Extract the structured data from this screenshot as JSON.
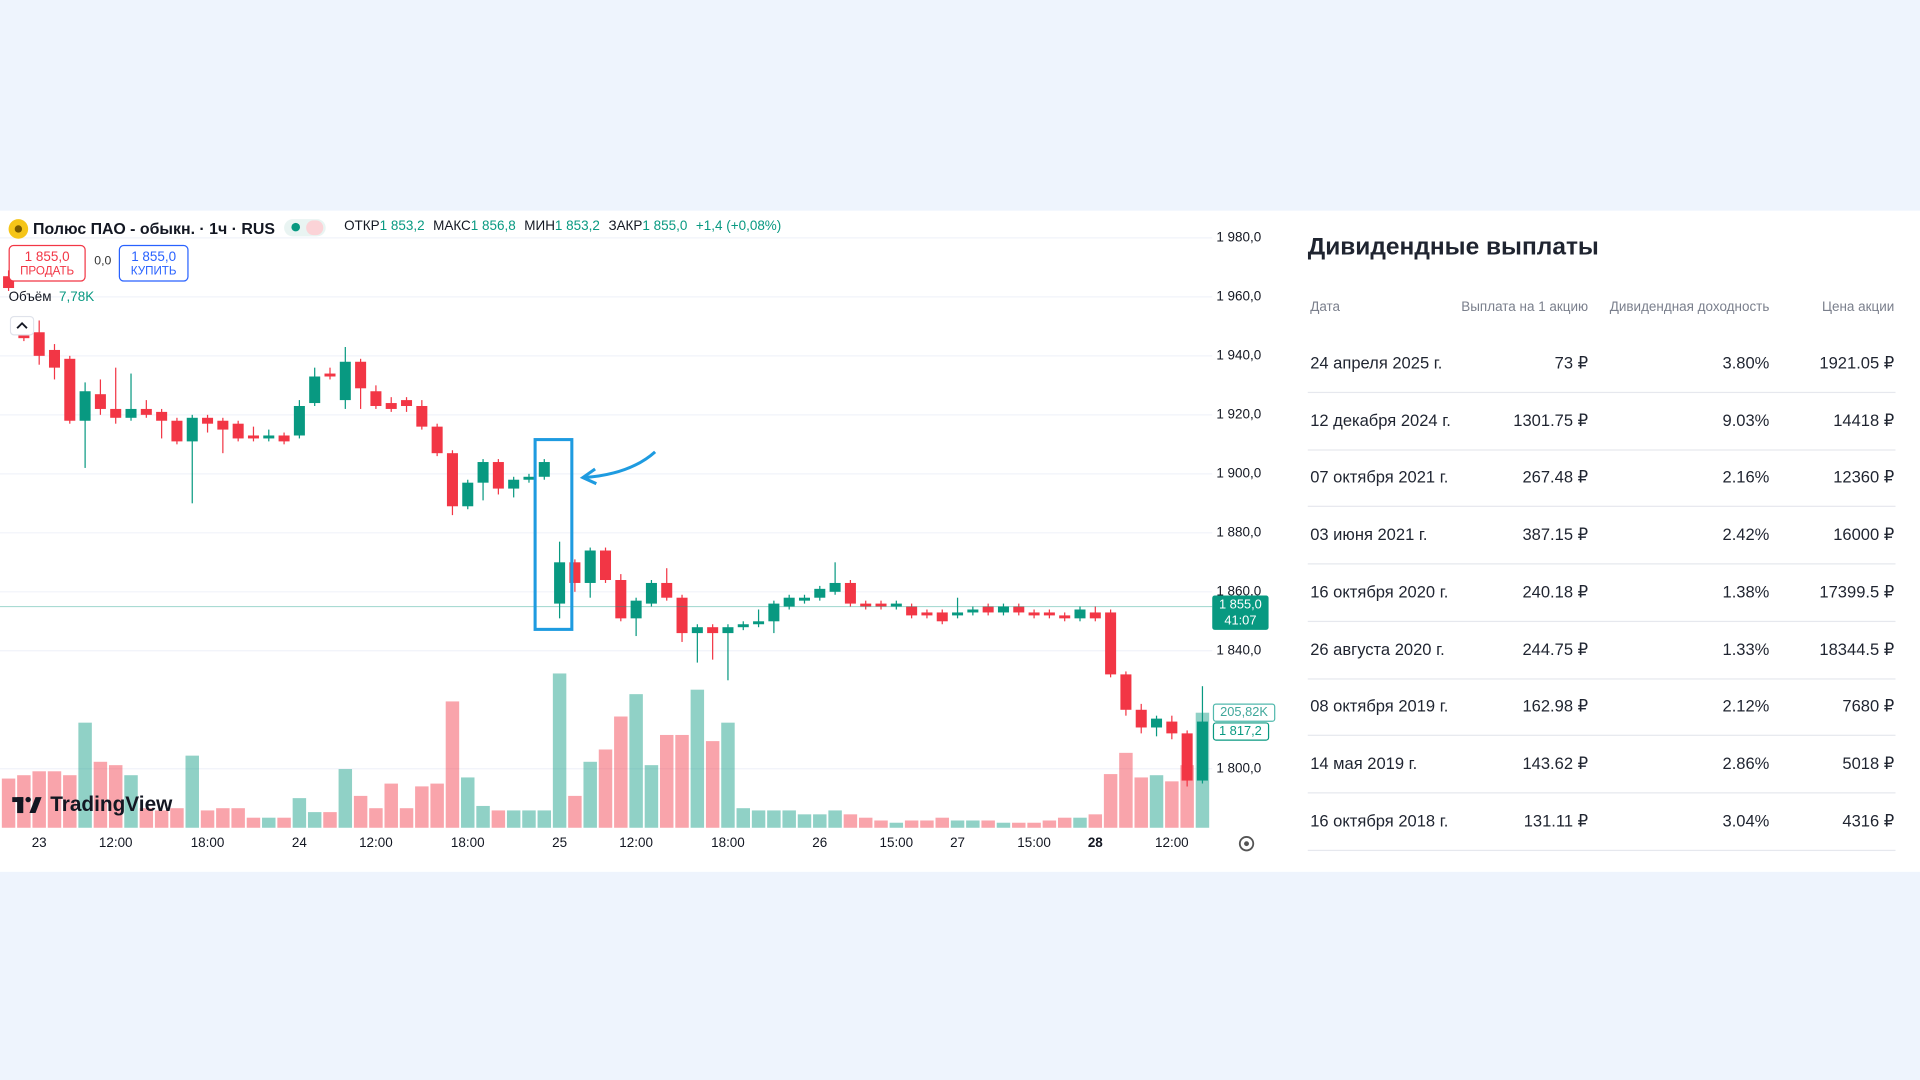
{
  "chart_data": {
    "type": "candlestick",
    "title": "Полюс ПАО - обыкн. · 1ч · RUS",
    "legend_items": [
      {
        "name": "ОТКР",
        "value": "1 853,2"
      },
      {
        "name": "МАКС",
        "value": "1 856,8"
      },
      {
        "name": "МИН",
        "value": "1 853,2"
      },
      {
        "name": "ЗАКР",
        "value": "1 855,0"
      }
    ],
    "change": "+1,4 (+0,08%)",
    "trade": {
      "sell_price": "1 855,0",
      "sell": "ПРОДАТЬ",
      "spread": "0,0",
      "buy_price": "1 855,0",
      "buy": "КУПИТЬ"
    },
    "brand": "TradingView",
    "up_color": "#089981",
    "down_color": "#f23645",
    "categories": [
      null,
      null,
      "23",
      null,
      null,
      null,
      null,
      "12:00",
      null,
      null,
      null,
      null,
      null,
      "18:00",
      null,
      null,
      null,
      null,
      null,
      "24",
      null,
      null,
      null,
      null,
      "12:00",
      null,
      null,
      null,
      null,
      null,
      "18:00",
      null,
      null,
      null,
      null,
      null,
      "25",
      null,
      null,
      null,
      null,
      "12:00",
      null,
      null,
      null,
      null,
      null,
      "18:00",
      null,
      null,
      null,
      null,
      null,
      "26",
      null,
      null,
      null,
      null,
      "15:00",
      null,
      null,
      null,
      "27",
      null,
      null,
      null,
      null,
      "15:00",
      null,
      null,
      null,
      "28",
      null,
      null,
      null,
      null,
      "12:00",
      null,
      null
    ],
    "open": [
      1967,
      1950,
      1948,
      1942,
      1939,
      1918,
      1927,
      1922,
      1919,
      1922,
      1921,
      1918,
      1911,
      1919,
      1918,
      1917,
      1913,
      1912,
      1913,
      1913,
      1924,
      1934,
      1925,
      1938,
      1928,
      1924,
      1925,
      1923,
      1916,
      1907,
      1889,
      1897,
      1904,
      1895,
      1898,
      1899,
      1856,
      1870,
      1863,
      1874,
      1864,
      1851,
      1856,
      1863,
      1858,
      1846,
      1848,
      1846,
      1848,
      1849,
      1850,
      1855,
      1857,
      1858,
      1860,
      1863,
      1856,
      1856,
      1855,
      1855,
      1853,
      1853,
      1852,
      1853,
      1855,
      1853,
      1855,
      1853,
      1853,
      1852,
      1851,
      1853,
      1853,
      1832,
      1820,
      1814,
      1816,
      1812,
      1796
    ],
    "high": [
      1969,
      1952,
      1952,
      1944,
      1940,
      1931,
      1932,
      1936,
      1934,
      1925,
      1922,
      1919,
      1920,
      1920,
      1919,
      1918,
      1916,
      1915,
      1914,
      1925,
      1936,
      1936,
      1943,
      1939,
      1930,
      1926,
      1926,
      1925,
      1917,
      1908,
      1898,
      1905,
      1905,
      1899,
      1900,
      1905,
      1877,
      1871,
      1875,
      1875,
      1866,
      1858,
      1864,
      1868,
      1859,
      1849,
      1849,
      1849,
      1850,
      1854,
      1857,
      1859,
      1859,
      1862,
      1870,
      1864,
      1857,
      1857,
      1857,
      1856,
      1854,
      1854,
      1858,
      1855,
      1856,
      1856,
      1856,
      1854,
      1854,
      1853,
      1855,
      1855,
      1854,
      1833,
      1822,
      1818,
      1818,
      1813,
      1828
    ],
    "low": [
      1962,
      1945,
      1937,
      1932,
      1917,
      1902,
      1920,
      1917,
      1918,
      1919,
      1912,
      1910,
      1890,
      1914,
      1907,
      1911,
      1911,
      1911,
      1910,
      1912,
      1923,
      1932,
      1922,
      1922,
      1922,
      1921,
      1921,
      1915,
      1906,
      1886,
      1888,
      1891,
      1893,
      1892,
      1897,
      1898,
      1851,
      1860,
      1858,
      1863,
      1850,
      1845,
      1855,
      1857,
      1843,
      1836,
      1837,
      1830,
      1847,
      1848,
      1846,
      1854,
      1856,
      1857,
      1859,
      1855,
      1854,
      1854,
      1854,
      1851,
      1851,
      1849,
      1851,
      1852,
      1852,
      1852,
      1852,
      1851,
      1851,
      1850,
      1850,
      1850,
      1831,
      1818,
      1812,
      1811,
      1810,
      1794,
      1795
    ],
    "close": [
      1963,
      1946,
      1940,
      1936,
      1918,
      1928,
      1922,
      1919,
      1922,
      1920,
      1918,
      1911,
      1919,
      1917,
      1915,
      1912,
      1912,
      1913,
      1911,
      1923,
      1933,
      1933,
      1938,
      1929,
      1923,
      1922,
      1923,
      1916,
      1907,
      1889,
      1897,
      1904,
      1895,
      1898,
      1899,
      1904,
      1870,
      1863,
      1874,
      1864,
      1851,
      1857,
      1863,
      1858,
      1846,
      1848,
      1846,
      1848,
      1849,
      1850,
      1856,
      1858,
      1858,
      1861,
      1863,
      1856,
      1855,
      1855,
      1856,
      1852,
      1852,
      1850,
      1853,
      1854,
      1853,
      1855,
      1853,
      1852,
      1852,
      1851,
      1854,
      1851,
      1832,
      1820,
      1814,
      1817,
      1812,
      1796,
      1816
    ],
    "volume": {
      "name": "Объём",
      "current": "7,78K",
      "values": [
        88,
        94,
        101,
        101,
        94,
        188,
        118,
        112,
        94,
        35,
        31,
        35,
        129,
        31,
        35,
        35,
        18,
        18,
        18,
        53,
        28,
        28,
        105,
        57,
        35,
        79,
        35,
        74,
        79,
        226,
        90,
        39,
        31,
        31,
        31,
        31,
        276,
        57,
        118,
        140,
        199,
        239,
        112,
        166,
        166,
        247,
        155,
        188,
        35,
        31,
        31,
        31,
        24,
        24,
        31,
        24,
        18,
        13,
        9,
        13,
        13,
        18,
        13,
        13,
        13,
        9,
        9,
        9,
        13,
        18,
        18,
        24,
        96,
        134,
        90,
        94,
        83,
        112,
        205.82
      ],
      "marker": {
        "value": 205.82,
        "label": "205,82K"
      }
    },
    "last_price": {
      "value": 1855,
      "label": "1 855,0",
      "countdown": "41:07"
    },
    "indicator_marker": {
      "value": 1817.2,
      "label": "1 817,2"
    },
    "ylim": [
      1780,
      1988
    ],
    "yticks": [
      {
        "value": 1980,
        "label": "1 980,0"
      },
      {
        "value": 1960,
        "label": "1 960,0"
      },
      {
        "value": 1940,
        "label": "1 940,0"
      },
      {
        "value": 1920,
        "label": "1 920,0"
      },
      {
        "value": 1900,
        "label": "1 900,0"
      },
      {
        "value": 1880,
        "label": "1 880,0"
      },
      {
        "value": 1860,
        "label": "1 860,0"
      },
      {
        "value": 1840,
        "label": "1 840,0"
      },
      {
        "value": 1800,
        "label": "1 800,0"
      }
    ],
    "grid": true
  },
  "table": {
    "title": "Дивидендные выплаты",
    "columns": [
      "Дата",
      "Выплата на 1 акцию",
      "Дивидендная доходность",
      "Цена акции"
    ],
    "rows": [
      [
        "24 апреля 2025 г.",
        "73 ₽",
        "3.80%",
        "1921.05 ₽"
      ],
      [
        "12 декабря 2024 г.",
        "1301.75 ₽",
        "9.03%",
        "14418 ₽"
      ],
      [
        "07 октября 2021 г.",
        "267.48 ₽",
        "2.16%",
        "12360 ₽"
      ],
      [
        "03 июня 2021 г.",
        "387.15 ₽",
        "2.42%",
        "16000 ₽"
      ],
      [
        "16 октября 2020 г.",
        "240.18 ₽",
        "1.38%",
        "17399.5 ₽"
      ],
      [
        "26 августа 2020 г.",
        "244.75 ₽",
        "1.33%",
        "18344.5 ₽"
      ],
      [
        "08 октября 2019 г.",
        "162.98 ₽",
        "2.12%",
        "7680 ₽"
      ],
      [
        "14 мая 2019 г.",
        "143.62 ₽",
        "2.86%",
        "5018 ₽"
      ],
      [
        "16 октября 2018 г.",
        "131.11 ₽",
        "3.04%",
        "4316 ₽"
      ]
    ]
  }
}
